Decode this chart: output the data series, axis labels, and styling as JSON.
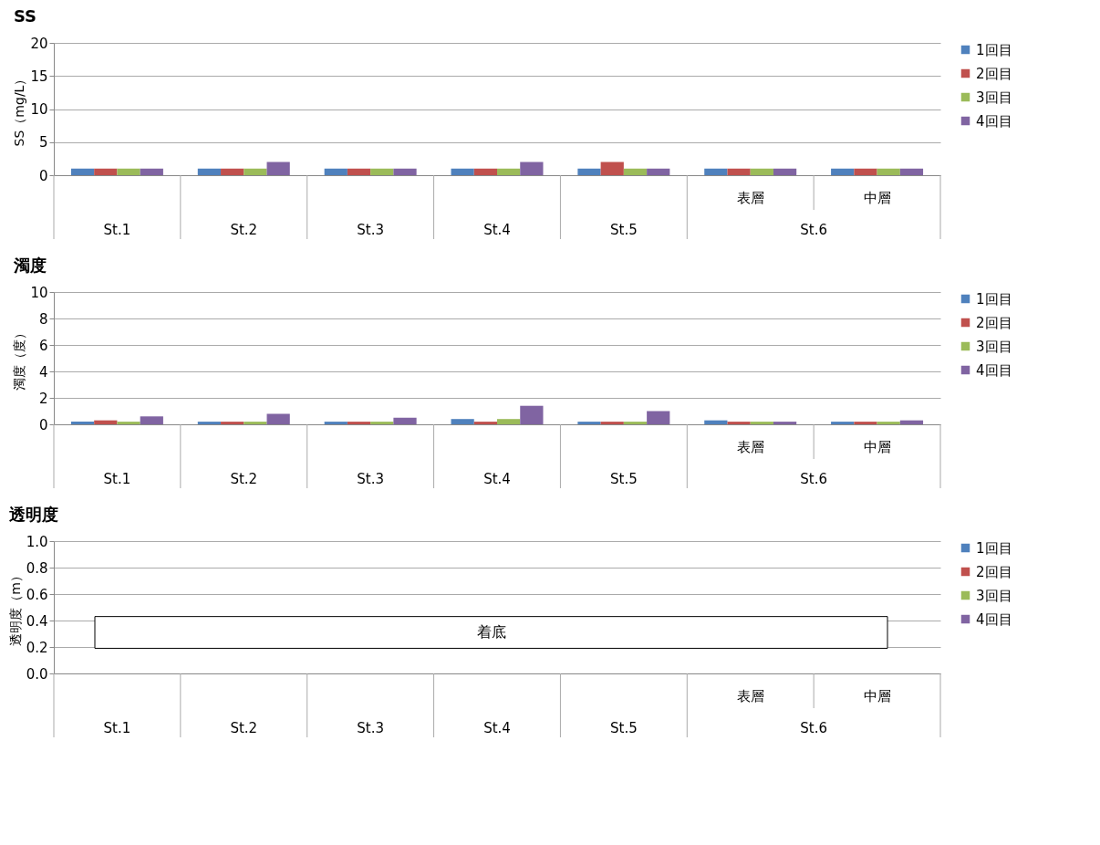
{
  "chart_data": [
    {
      "type": "bar",
      "title": "SS",
      "ylabel": "SS（mg/L）",
      "categories": [
        "St.1",
        "St.2",
        "St.3",
        "St.4",
        "St.5",
        "表層",
        "中層"
      ],
      "series": [
        {
          "name": "1回目",
          "color": "#4f81bd",
          "values": [
            1,
            1,
            1,
            1,
            1,
            1,
            1
          ]
        },
        {
          "name": "2回目",
          "color": "#c0504d",
          "values": [
            1,
            1,
            1,
            1,
            2,
            1,
            1
          ]
        },
        {
          "name": "3回目",
          "color": "#9bbb59",
          "values": [
            1,
            1,
            1,
            1,
            1,
            1,
            1
          ]
        },
        {
          "name": "4回目",
          "color": "#8064a2",
          "values": [
            1,
            2,
            1,
            2,
            1,
            1,
            1
          ]
        }
      ],
      "ylim": [
        0,
        20
      ],
      "yticks": [
        0,
        5,
        10,
        15,
        20
      ],
      "grid": "y",
      "legend": "right",
      "annotations": [
        "St.6"
      ]
    },
    {
      "type": "bar",
      "title": "濁度",
      "ylabel": "濁度（度）",
      "categories": [
        "St.1",
        "St.2",
        "St.3",
        "St.4",
        "St.5",
        "表層",
        "中層"
      ],
      "series": [
        {
          "name": "1回目",
          "color": "#4f81bd",
          "values": [
            0.2,
            0.2,
            0.2,
            0.4,
            0.2,
            0.3,
            0.2
          ]
        },
        {
          "name": "2回目",
          "color": "#c0504d",
          "values": [
            0.3,
            0.2,
            0.2,
            0.2,
            0.2,
            0.2,
            0.2
          ]
        },
        {
          "name": "3回目",
          "color": "#9bbb59",
          "values": [
            0.2,
            0.2,
            0.2,
            0.4,
            0.2,
            0.2,
            0.2
          ]
        },
        {
          "name": "4回目",
          "color": "#8064a2",
          "values": [
            0.6,
            0.8,
            0.5,
            1.4,
            1.0,
            0.2,
            0.3
          ]
        }
      ],
      "ylim": [
        0,
        10
      ],
      "yticks": [
        0,
        2,
        4,
        6,
        8,
        10
      ],
      "grid": "y",
      "legend": "right",
      "annotations": [
        "St.6"
      ]
    },
    {
      "type": "bar",
      "title": "透明度",
      "ylabel": "透明度（m）",
      "categories": [
        "St.1",
        "St.2",
        "St.3",
        "St.4",
        "St.5",
        "表層",
        "中層"
      ],
      "series": [
        {
          "name": "1回目",
          "color": "#4f81bd",
          "values": [
            null,
            null,
            null,
            null,
            null,
            null,
            null
          ]
        },
        {
          "name": "2回目",
          "color": "#c0504d",
          "values": [
            null,
            null,
            null,
            null,
            null,
            null,
            null
          ]
        },
        {
          "name": "3回目",
          "color": "#9bbb59",
          "values": [
            null,
            null,
            null,
            null,
            null,
            null,
            null
          ]
        },
        {
          "name": "4回目",
          "color": "#8064a2",
          "values": [
            null,
            null,
            null,
            null,
            null,
            null,
            null
          ]
        }
      ],
      "ylim": [
        0,
        1
      ],
      "yticks": [
        {
          "value": 0,
          "label": "0.0"
        },
        0.2,
        0.4,
        0.6,
        0.8,
        {
          "value": 1,
          "label": "1.0"
        }
      ],
      "grid": "y",
      "legend": "right",
      "annotations": [
        "St.6",
        "着底"
      ]
    }
  ]
}
